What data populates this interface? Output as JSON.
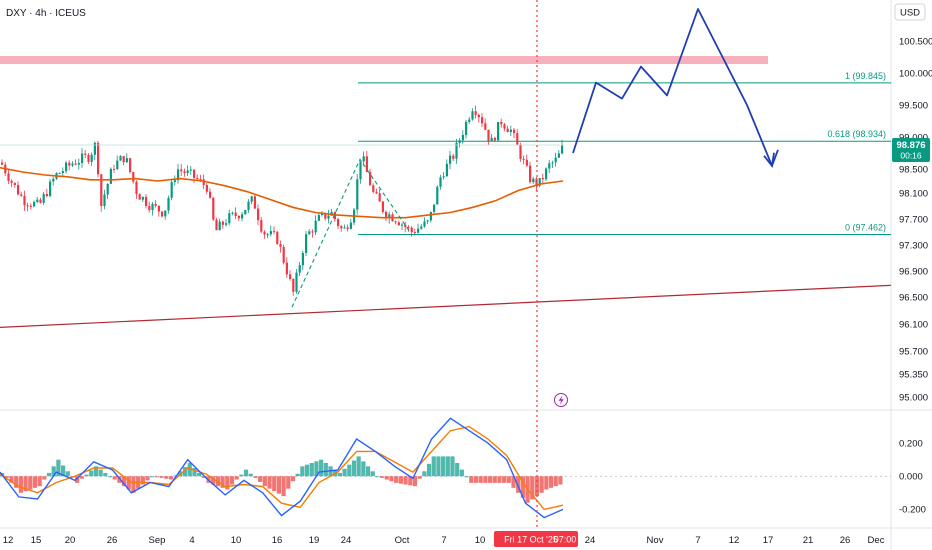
{
  "header": {
    "title": "DXY · 4h · ICEUS",
    "currency": "USD"
  },
  "colors": {
    "up": "#089981",
    "down": "#f23645",
    "ema": "#e65c00",
    "trend": "#b22833",
    "zone": "#f7b1bd",
    "fib": "#089981",
    "projection": "#1f3fae",
    "vline": "#f23645",
    "osc_fast": "#2962ff",
    "osc_slow": "#f57c00",
    "hist_up": "#26a69a",
    "hist_down": "#ef5350"
  },
  "price_badge": {
    "value": "98.876",
    "countdown": "00:16"
  },
  "crosshair_date": "Fri 17 Oct '25",
  "crosshair_time": "07:00",
  "fib_levels": [
    {
      "label": "1 (99.845)",
      "value": 99.845
    },
    {
      "label": "0.618 (98.934)",
      "value": 98.934
    },
    {
      "label": "0 (97.462)",
      "value": 97.462
    }
  ],
  "chart_data": [
    {
      "type": "candlestick",
      "title": "DXY · 4h · ICEUS",
      "y_ticks": [
        "100.500",
        "100.000",
        "99.500",
        "99.000",
        "98.500",
        "98.100",
        "97.700",
        "97.300",
        "96.900",
        "96.500",
        "96.100",
        "95.700",
        "95.350",
        "95.000"
      ],
      "x_ticks": [
        "12",
        "15",
        "20",
        "26",
        "Sep",
        "4",
        "10",
        "16",
        "19",
        "24",
        "Oct",
        "7",
        "10",
        "24",
        "Nov",
        "7",
        "12",
        "17",
        "21",
        "26",
        "Dec"
      ],
      "ylim": [
        94.8,
        101.2
      ],
      "resistance_zone": [
        100.15,
        100.27
      ],
      "current_price": 98.876,
      "ema_y": [
        98.52,
        98.45,
        98.4,
        98.37,
        98.32,
        98.32,
        98.34,
        98.3,
        98.34,
        98.3,
        98.22,
        98.12,
        98.0,
        97.88,
        97.8,
        97.76,
        97.74,
        97.72,
        97.72,
        97.76,
        97.8,
        97.88,
        97.98,
        98.14,
        98.25,
        98.3
      ],
      "trendline": {
        "start": 96.05,
        "end": 96.68
      },
      "projection_path": [
        98.75,
        99.85,
        99.6,
        100.1,
        99.65,
        101.0,
        99.5,
        98.55,
        98.8
      ]
    },
    {
      "type": "oscillator",
      "y_ticks": [
        "0.200",
        "0.000",
        "-0.200"
      ],
      "ylim": [
        -0.25,
        0.32
      ],
      "fast": [
        0.02,
        -0.1,
        -0.11,
        0.02,
        -0.02,
        0.07,
        0.03,
        -0.08,
        -0.03,
        -0.05,
        0.08,
        -0.01,
        -0.09,
        -0.02,
        -0.08,
        -0.19,
        -0.12,
        0.02,
        0.03,
        0.18,
        0.12,
        0.05,
        -0.01,
        0.18,
        0.28,
        0.22,
        0.16,
        0.08,
        -0.13,
        -0.2,
        -0.16
      ],
      "slow": [
        0.01,
        -0.05,
        -0.08,
        -0.03,
        0.0,
        0.04,
        0.04,
        -0.03,
        -0.03,
        -0.04,
        0.04,
        0.01,
        -0.05,
        -0.04,
        -0.05,
        -0.13,
        -0.15,
        -0.03,
        0.02,
        0.12,
        0.12,
        0.07,
        0.02,
        0.12,
        0.22,
        0.24,
        0.18,
        0.1,
        -0.05,
        -0.16,
        -0.14
      ]
    }
  ]
}
